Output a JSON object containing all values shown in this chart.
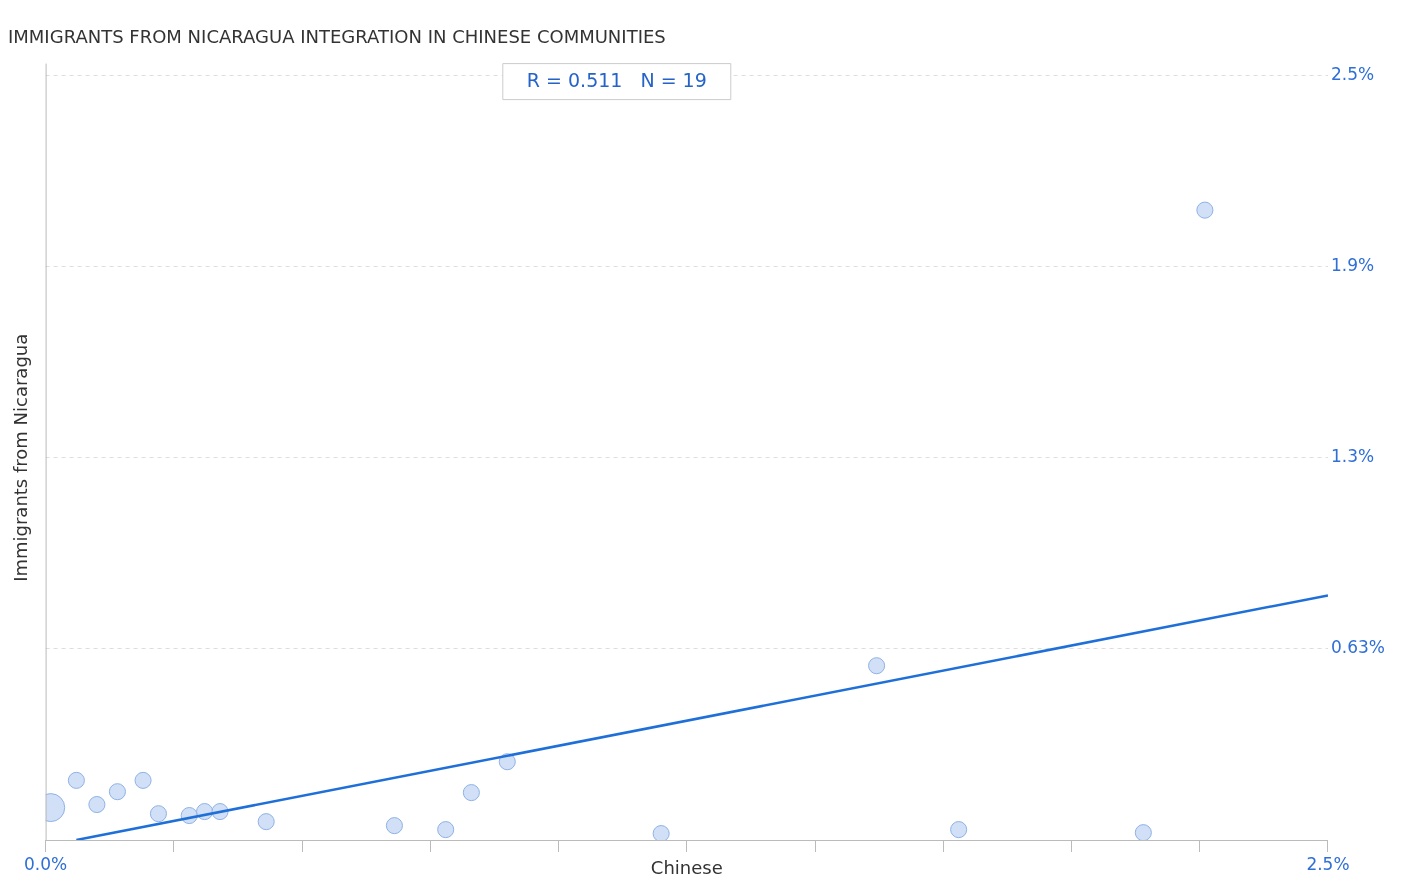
{
  "chart_data": {
    "type": "bubble",
    "title": "IMMIGRANTS FROM NICARAGUA INTEGRATION IN CHINESE COMMUNITIES",
    "xlabel": "Chinese",
    "ylabel": "Immigrants from Nicaragua",
    "annotations": [
      "R = 0.511",
      "N = 19"
    ],
    "series": [
      {
        "type": "bubble",
        "color": "#c5d8f4",
        "x": [
          0.01,
          0.06,
          0.1,
          0.14,
          0.19,
          0.22,
          0.28,
          0.31,
          0.34,
          0.43,
          0.68,
          0.78,
          0.83,
          0.9,
          1.2,
          1.62,
          1.78,
          2.14,
          2.26
        ],
        "values": [
          0.106,
          0.195,
          0.116,
          0.158,
          0.195,
          0.086,
          0.08,
          0.093,
          0.093,
          0.06,
          0.047,
          0.034,
          0.155,
          0.256,
          0.021,
          0.57,
          0.034,
          0.024,
          2.06
        ],
        "sizes": [
          1,
          0.33,
          0.33,
          0.33,
          0.33,
          0.33,
          0.33,
          0.33,
          0.33,
          0.33,
          0.33,
          0.33,
          0.33,
          0.33,
          0.33,
          0.33,
          0.33,
          0.33,
          0.33
        ]
      },
      {
        "type": "line",
        "color": "#1f6fd9",
        "x": [
          0.06,
          2.5
        ],
        "values": [
          0,
          0.8
        ]
      }
    ],
    "xlim": [
      0,
      2.5
    ],
    "xticks": [
      {
        "value": 0,
        "label": "0.0%"
      },
      {
        "value": 0.25,
        "label": null
      },
      {
        "value": 0.5,
        "label": null
      },
      {
        "value": 0.75,
        "label": null
      },
      {
        "value": 1,
        "label": null
      },
      {
        "value": 1.25,
        "label": null
      },
      {
        "value": 1.5,
        "label": null
      },
      {
        "value": 1.75,
        "label": null
      },
      {
        "value": 2,
        "label": null
      },
      {
        "value": 2.25,
        "label": null
      },
      {
        "value": 2.5,
        "label": "2.5%"
      }
    ],
    "ylim": [
      0,
      2.5
    ],
    "yticks": [
      {
        "value": 0.625,
        "label": "0.63%"
      },
      {
        "value": 1.25,
        "label": "1.3%"
      },
      {
        "value": 1.875,
        "label": "1.9%"
      },
      {
        "value": 2.5,
        "label": "2.5%"
      }
    ],
    "grid": "y",
    "legend": false
  }
}
